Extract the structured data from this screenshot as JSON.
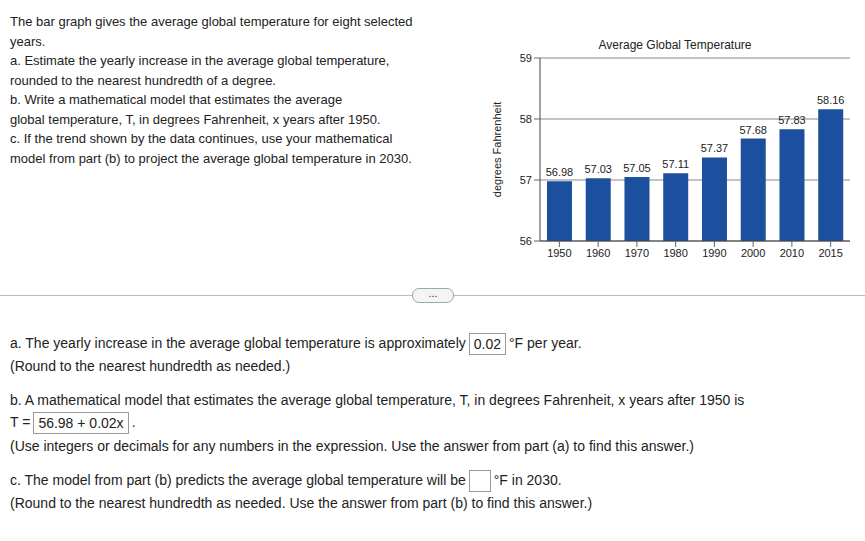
{
  "problem": {
    "lines": [
      "The bar graph gives the average global temperature for eight selected",
      "years.",
      "a. Estimate the yearly increase in the average global temperature,",
      "rounded to the nearest hundredth of a degree.",
      "b. Write a mathematical model that estimates the average",
      "global temperature, T, in degrees Fahrenheit, x years after 1950.",
      "c. If the trend shown by the data continues, use your mathematical",
      "model from part (b) to project the average global temperature in 2030."
    ]
  },
  "chart_data": {
    "type": "bar",
    "title": "Average Global Temperature",
    "y_label": "degrees Fahrenheit",
    "categories": [
      "1950",
      "1960",
      "1970",
      "1980",
      "1990",
      "2000",
      "2010",
      "2015"
    ],
    "values": [
      56.98,
      57.03,
      57.05,
      57.11,
      57.37,
      57.68,
      57.83,
      58.16
    ],
    "color": "#1d4f9f",
    "ylim": [
      56,
      59
    ],
    "yticks": [
      56,
      57,
      58,
      59
    ],
    "grid": true,
    "data_labels": true
  },
  "more_button": "...",
  "answers": {
    "a": {
      "prefix": "a. The yearly increase in the average global temperature is approximately",
      "answer": "0.02",
      "suffix": "°F per year.",
      "note": "(Round to the nearest hundredth as needed.)"
    },
    "b": {
      "prefix": "b. A mathematical model that estimates the average global temperature, T, in degrees Fahrenheit, x years after 1950 is",
      "lhs": "T =",
      "answer": "56.98 + 0.02x",
      "suffix": ".",
      "note": "(Use integers or decimals for any numbers in the expression. Use the answer from part (a) to find this answer.)"
    },
    "c": {
      "prefix": "c. The model from part (b) predicts the average global temperature will be",
      "suffix": "°F in 2030.",
      "note": "(Round to the nearest hundredth as needed. Use the answer from part (b) to find this answer.)"
    }
  }
}
